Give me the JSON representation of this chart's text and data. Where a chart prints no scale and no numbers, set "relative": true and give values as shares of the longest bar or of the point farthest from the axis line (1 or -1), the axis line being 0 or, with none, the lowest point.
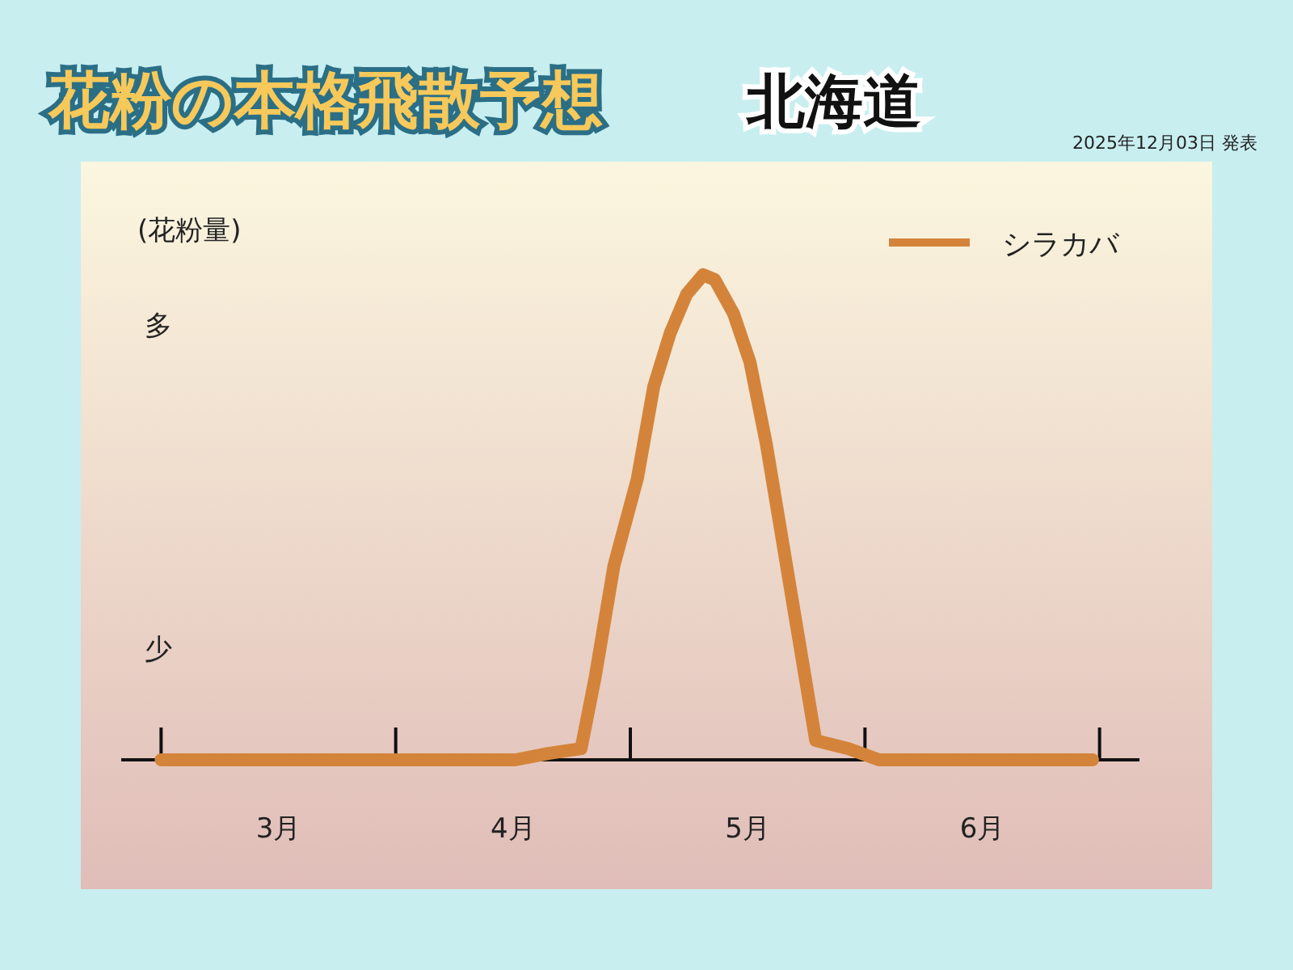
{
  "chart_data": {
    "type": "line",
    "title": "花粉の本格飛散予想",
    "subtitle": "北海道",
    "ylabel": "(花粉量)",
    "annotations": [
      "2025年12月03日 発表",
      "多",
      "少"
    ],
    "relative": true,
    "legend": "top right",
    "marker": "none",
    "line_style": "solid",
    "xlim": [
      2.83,
      7.17
    ],
    "xticks": [
      {
        "value": 3.5,
        "label": "3月"
      },
      {
        "value": 4.5,
        "label": "4月"
      },
      {
        "value": 5.5,
        "label": "5月"
      },
      {
        "value": 6.5,
        "label": "6月"
      }
    ],
    "series": [
      {
        "name": "シラカバ",
        "color": "#d4843a",
        "x": [
          3.0,
          4.51,
          4.65,
          4.79,
          4.85,
          4.93,
          5.03,
          5.1,
          5.17,
          5.24,
          5.31,
          5.36,
          5.44,
          5.51,
          5.58,
          5.69,
          5.79,
          5.93,
          6.06,
          6.97
        ],
        "values": [
          0,
          0,
          0.013,
          0.023,
          0.17,
          0.4,
          0.58,
          0.77,
          0.88,
          0.96,
          1,
          0.99,
          0.92,
          0.82,
          0.65,
          0.33,
          0.04,
          0.023,
          0,
          0
        ]
      }
    ]
  }
}
